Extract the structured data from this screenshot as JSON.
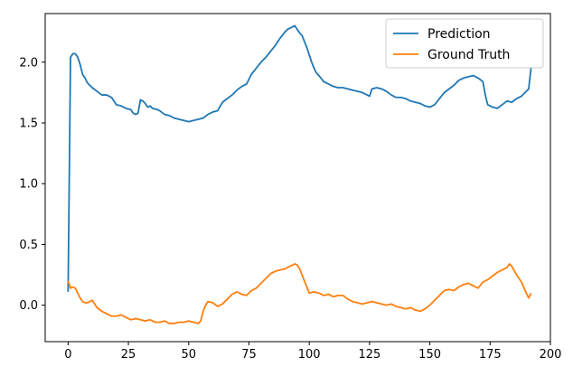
{
  "chart_data": {
    "type": "line",
    "title": "",
    "xlabel": "",
    "ylabel": "",
    "xlim": [
      -9.5,
      200
    ],
    "ylim": [
      -0.3,
      2.4
    ],
    "xticks": [
      0,
      25,
      50,
      75,
      100,
      125,
      150,
      175,
      200
    ],
    "yticks": [
      0.0,
      0.5,
      1.0,
      1.5,
      2.0
    ],
    "xtick_labels": [
      "0",
      "25",
      "50",
      "75",
      "100",
      "125",
      "150",
      "175",
      "200"
    ],
    "ytick_labels": [
      "0.0",
      "0.5",
      "1.0",
      "1.5",
      "2.0"
    ],
    "legend_position": "top-right",
    "grid": false,
    "series": [
      {
        "name": "Prediction",
        "color": "#1f77b4",
        "points": [
          [
            0,
            0.11
          ],
          [
            1,
            2.04
          ],
          [
            2,
            2.07
          ],
          [
            3,
            2.07
          ],
          [
            4,
            2.04
          ],
          [
            5,
            1.98
          ],
          [
            6,
            1.9
          ],
          [
            7,
            1.87
          ],
          [
            8,
            1.83
          ],
          [
            10,
            1.79
          ],
          [
            12,
            1.76
          ],
          [
            14,
            1.73
          ],
          [
            16,
            1.73
          ],
          [
            18,
            1.71
          ],
          [
            20,
            1.65
          ],
          [
            22,
            1.64
          ],
          [
            24,
            1.62
          ],
          [
            26,
            1.61
          ],
          [
            27,
            1.58
          ],
          [
            28,
            1.57
          ],
          [
            29,
            1.58
          ],
          [
            30,
            1.69
          ],
          [
            31,
            1.68
          ],
          [
            32,
            1.66
          ],
          [
            33,
            1.63
          ],
          [
            34,
            1.64
          ],
          [
            35,
            1.62
          ],
          [
            37,
            1.61
          ],
          [
            38,
            1.6
          ],
          [
            40,
            1.57
          ],
          [
            42,
            1.56
          ],
          [
            44,
            1.54
          ],
          [
            46,
            1.53
          ],
          [
            48,
            1.52
          ],
          [
            50,
            1.51
          ],
          [
            52,
            1.52
          ],
          [
            54,
            1.53
          ],
          [
            56,
            1.54
          ],
          [
            58,
            1.57
          ],
          [
            60,
            1.59
          ],
          [
            62,
            1.6
          ],
          [
            64,
            1.67
          ],
          [
            66,
            1.7
          ],
          [
            68,
            1.73
          ],
          [
            70,
            1.77
          ],
          [
            72,
            1.8
          ],
          [
            74,
            1.82
          ],
          [
            76,
            1.9
          ],
          [
            78,
            1.95
          ],
          [
            80,
            2.0
          ],
          [
            82,
            2.04
          ],
          [
            84,
            2.09
          ],
          [
            86,
            2.14
          ],
          [
            88,
            2.2
          ],
          [
            90,
            2.25
          ],
          [
            91,
            2.27
          ],
          [
            92,
            2.28
          ],
          [
            93,
            2.29
          ],
          [
            94,
            2.3
          ],
          [
            95,
            2.27
          ],
          [
            96,
            2.24
          ],
          [
            97,
            2.22
          ],
          [
            98,
            2.17
          ],
          [
            99,
            2.12
          ],
          [
            100,
            2.06
          ],
          [
            101,
            2.0
          ],
          [
            102,
            1.95
          ],
          [
            103,
            1.91
          ],
          [
            104,
            1.89
          ],
          [
            106,
            1.84
          ],
          [
            108,
            1.82
          ],
          [
            110,
            1.8
          ],
          [
            112,
            1.79
          ],
          [
            114,
            1.79
          ],
          [
            116,
            1.78
          ],
          [
            118,
            1.77
          ],
          [
            120,
            1.76
          ],
          [
            122,
            1.75
          ],
          [
            124,
            1.73
          ],
          [
            125,
            1.72
          ],
          [
            126,
            1.78
          ],
          [
            128,
            1.79
          ],
          [
            130,
            1.78
          ],
          [
            132,
            1.76
          ],
          [
            134,
            1.73
          ],
          [
            136,
            1.71
          ],
          [
            138,
            1.71
          ],
          [
            140,
            1.7
          ],
          [
            142,
            1.68
          ],
          [
            144,
            1.67
          ],
          [
            146,
            1.66
          ],
          [
            148,
            1.64
          ],
          [
            150,
            1.63
          ],
          [
            152,
            1.65
          ],
          [
            154,
            1.7
          ],
          [
            156,
            1.75
          ],
          [
            158,
            1.78
          ],
          [
            160,
            1.81
          ],
          [
            162,
            1.85
          ],
          [
            164,
            1.87
          ],
          [
            166,
            1.88
          ],
          [
            168,
            1.89
          ],
          [
            170,
            1.87
          ],
          [
            172,
            1.84
          ],
          [
            173,
            1.73
          ],
          [
            174,
            1.65
          ],
          [
            176,
            1.63
          ],
          [
            178,
            1.62
          ],
          [
            180,
            1.65
          ],
          [
            182,
            1.68
          ],
          [
            184,
            1.67
          ],
          [
            186,
            1.7
          ],
          [
            188,
            1.72
          ],
          [
            190,
            1.76
          ],
          [
            191,
            1.78
          ],
          [
            192,
            1.96
          ]
        ]
      },
      {
        "name": "Ground Truth",
        "color": "#ff7f0e",
        "points": [
          [
            0,
            0.2
          ],
          [
            1,
            0.14
          ],
          [
            2,
            0.15
          ],
          [
            3,
            0.14
          ],
          [
            4,
            0.1
          ],
          [
            5,
            0.06
          ],
          [
            6,
            0.03
          ],
          [
            7,
            0.02
          ],
          [
            8,
            0.02
          ],
          [
            10,
            0.04
          ],
          [
            12,
            -0.02
          ],
          [
            14,
            -0.05
          ],
          [
            16,
            -0.07
          ],
          [
            18,
            -0.09
          ],
          [
            20,
            -0.09
          ],
          [
            22,
            -0.08
          ],
          [
            24,
            -0.1
          ],
          [
            26,
            -0.12
          ],
          [
            28,
            -0.11
          ],
          [
            30,
            -0.12
          ],
          [
            32,
            -0.13
          ],
          [
            34,
            -0.12
          ],
          [
            36,
            -0.14
          ],
          [
            38,
            -0.14
          ],
          [
            40,
            -0.13
          ],
          [
            42,
            -0.15
          ],
          [
            44,
            -0.15
          ],
          [
            46,
            -0.14
          ],
          [
            48,
            -0.14
          ],
          [
            50,
            -0.13
          ],
          [
            52,
            -0.14
          ],
          [
            54,
            -0.15
          ],
          [
            55,
            -0.13
          ],
          [
            56,
            -0.05
          ],
          [
            57,
            0.0
          ],
          [
            58,
            0.03
          ],
          [
            60,
            0.02
          ],
          [
            62,
            -0.01
          ],
          [
            64,
            0.01
          ],
          [
            66,
            0.05
          ],
          [
            68,
            0.09
          ],
          [
            70,
            0.11
          ],
          [
            72,
            0.09
          ],
          [
            74,
            0.08
          ],
          [
            76,
            0.12
          ],
          [
            78,
            0.14
          ],
          [
            80,
            0.18
          ],
          [
            82,
            0.22
          ],
          [
            84,
            0.26
          ],
          [
            86,
            0.28
          ],
          [
            88,
            0.29
          ],
          [
            90,
            0.3
          ],
          [
            91,
            0.31
          ],
          [
            92,
            0.32
          ],
          [
            93,
            0.33
          ],
          [
            94,
            0.34
          ],
          [
            95,
            0.33
          ],
          [
            96,
            0.3
          ],
          [
            97,
            0.25
          ],
          [
            98,
            0.2
          ],
          [
            99,
            0.15
          ],
          [
            100,
            0.1
          ],
          [
            102,
            0.11
          ],
          [
            104,
            0.1
          ],
          [
            106,
            0.08
          ],
          [
            108,
            0.09
          ],
          [
            110,
            0.07
          ],
          [
            112,
            0.08
          ],
          [
            114,
            0.08
          ],
          [
            116,
            0.05
          ],
          [
            118,
            0.03
          ],
          [
            120,
            0.02
          ],
          [
            122,
            0.01
          ],
          [
            124,
            0.02
          ],
          [
            126,
            0.03
          ],
          [
            128,
            0.02
          ],
          [
            130,
            0.01
          ],
          [
            132,
            0.0
          ],
          [
            134,
            0.01
          ],
          [
            136,
            -0.01
          ],
          [
            138,
            -0.02
          ],
          [
            140,
            -0.03
          ],
          [
            142,
            -0.02
          ],
          [
            144,
            -0.04
          ],
          [
            146,
            -0.05
          ],
          [
            148,
            -0.03
          ],
          [
            150,
            0.0
          ],
          [
            152,
            0.04
          ],
          [
            154,
            0.08
          ],
          [
            156,
            0.12
          ],
          [
            158,
            0.13
          ],
          [
            160,
            0.12
          ],
          [
            162,
            0.15
          ],
          [
            164,
            0.17
          ],
          [
            166,
            0.18
          ],
          [
            168,
            0.16
          ],
          [
            170,
            0.14
          ],
          [
            172,
            0.19
          ],
          [
            174,
            0.21
          ],
          [
            176,
            0.24
          ],
          [
            178,
            0.27
          ],
          [
            180,
            0.29
          ],
          [
            182,
            0.31
          ],
          [
            183,
            0.34
          ],
          [
            184,
            0.32
          ],
          [
            186,
            0.25
          ],
          [
            188,
            0.19
          ],
          [
            190,
            0.1
          ],
          [
            191,
            0.06
          ],
          [
            192,
            0.1
          ]
        ]
      }
    ]
  }
}
